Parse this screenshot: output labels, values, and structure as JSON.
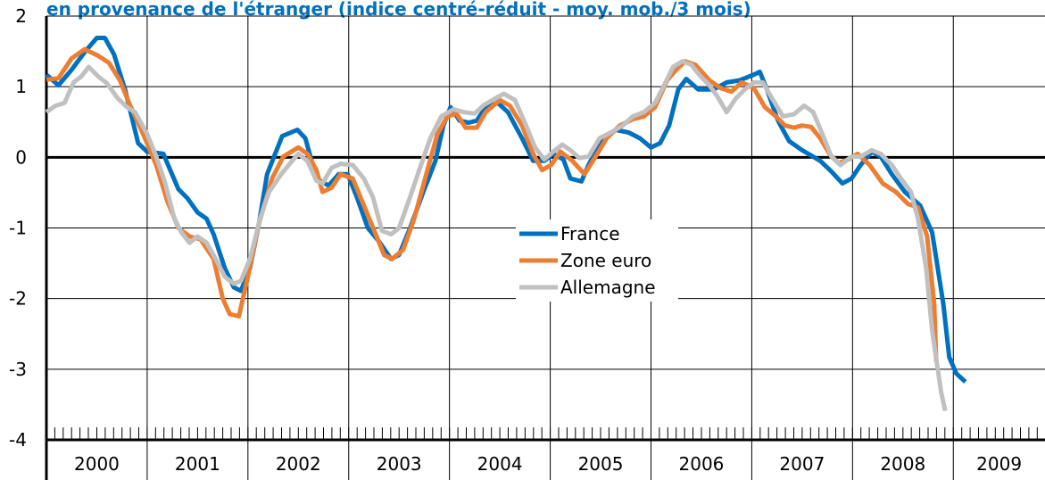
{
  "chart_data": {
    "type": "line",
    "title": "en provenance de l'étranger (indice centré-réduit - moy. mob./3 mois)",
    "xlim": [
      2000,
      2009.91
    ],
    "xticks": [
      2000,
      2001,
      2002,
      2003,
      2004,
      2005,
      2006,
      2007,
      2008,
      2009
    ],
    "ylim": [
      -4,
      2
    ],
    "yticks": [
      -4,
      -3,
      -2,
      -1,
      0,
      1,
      2
    ],
    "grid": true,
    "series": [
      {
        "name": "France",
        "color": "#0070c0",
        "x": [
          2000.0,
          2000.12,
          2000.25,
          2000.38,
          2000.5,
          2000.58,
          2000.67,
          2000.78,
          2000.91,
          2001.0,
          2001.16,
          2001.31,
          2001.4,
          2001.5,
          2001.59,
          2001.66,
          2001.77,
          2001.86,
          2001.93,
          2002.02,
          2002.11,
          2002.19,
          2002.34,
          2002.49,
          2002.57,
          2002.68,
          2002.8,
          2002.9,
          2002.99,
          2003.08,
          2003.19,
          2003.3,
          2003.42,
          2003.5,
          2003.61,
          2003.74,
          2003.86,
          2003.94,
          2004.01,
          2004.1,
          2004.19,
          2004.27,
          2004.36,
          2004.48,
          2004.58,
          2004.72,
          2004.83,
          2004.94,
          2005.03,
          2005.13,
          2005.2,
          2005.31,
          2005.38,
          2005.49,
          2005.65,
          2005.78,
          2005.89,
          2006.0,
          2006.09,
          2006.18,
          2006.27,
          2006.35,
          2006.47,
          2006.62,
          2006.75,
          2006.88,
          2007.02,
          2007.08,
          2007.15,
          2007.26,
          2007.37,
          2007.5,
          2007.68,
          2007.79,
          2007.9,
          2007.99,
          2008.08,
          2008.19,
          2008.28,
          2008.39,
          2008.52,
          2008.67,
          2008.79,
          2008.9,
          2008.96,
          2009.03,
          2009.12
        ],
        "values": [
          1.17,
          1.02,
          1.24,
          1.49,
          1.69,
          1.69,
          1.46,
          0.96,
          0.2,
          0.08,
          0.05,
          -0.45,
          -0.58,
          -0.78,
          -0.87,
          -1.09,
          -1.57,
          -1.84,
          -1.89,
          -1.57,
          -0.93,
          -0.24,
          0.3,
          0.39,
          0.27,
          -0.3,
          -0.4,
          -0.24,
          -0.24,
          -0.56,
          -1.0,
          -1.19,
          -1.44,
          -1.38,
          -1.0,
          -0.49,
          -0.05,
          0.45,
          0.71,
          0.52,
          0.49,
          0.52,
          0.71,
          0.77,
          0.64,
          0.27,
          -0.05,
          -0.05,
          0.05,
          -0.03,
          -0.3,
          -0.34,
          -0.11,
          0.2,
          0.39,
          0.35,
          0.27,
          0.14,
          0.2,
          0.45,
          0.96,
          1.11,
          0.96,
          0.96,
          1.06,
          1.09,
          1.17,
          1.21,
          0.96,
          0.52,
          0.23,
          0.1,
          -0.05,
          -0.2,
          -0.37,
          -0.3,
          -0.11,
          0.08,
          0.01,
          -0.24,
          -0.49,
          -0.68,
          -1.06,
          -2.07,
          -2.83,
          -3.06,
          -3.18
        ]
      },
      {
        "name": "Zone euro",
        "color": "#ed7d31",
        "x": [
          2000.0,
          2000.12,
          2000.25,
          2000.38,
          2000.51,
          2000.62,
          2000.73,
          2000.82,
          2000.96,
          2001.09,
          2001.2,
          2001.31,
          2001.42,
          2001.53,
          2001.66,
          2001.75,
          2001.82,
          2001.91,
          2002.0,
          2002.11,
          2002.24,
          2002.35,
          2002.5,
          2002.59,
          2002.68,
          2002.74,
          2002.83,
          2002.92,
          2003.04,
          2003.15,
          2003.26,
          2003.35,
          2003.43,
          2003.54,
          2003.65,
          2003.77,
          2003.88,
          2003.98,
          2004.07,
          2004.16,
          2004.27,
          2004.36,
          2004.5,
          2004.6,
          2004.72,
          2004.83,
          2004.92,
          2005.01,
          2005.1,
          2005.22,
          2005.34,
          2005.45,
          2005.56,
          2005.69,
          2005.82,
          2005.93,
          2006.04,
          2006.16,
          2006.25,
          2006.34,
          2006.44,
          2006.58,
          2006.69,
          2006.8,
          2006.9,
          2007.02,
          2007.13,
          2007.24,
          2007.33,
          2007.42,
          2007.5,
          2007.59,
          2007.68,
          2007.77,
          2007.86,
          2007.96,
          2008.05,
          2008.17,
          2008.3,
          2008.43,
          2008.55,
          2008.65,
          2008.74,
          2008.81,
          2008.83
        ],
        "values": [
          1.1,
          1.12,
          1.4,
          1.53,
          1.44,
          1.34,
          1.09,
          0.77,
          0.33,
          -0.11,
          -0.62,
          -1.0,
          -1.12,
          -1.16,
          -1.44,
          -2.0,
          -2.22,
          -2.25,
          -1.69,
          -0.93,
          -0.3,
          0.01,
          0.14,
          0.05,
          -0.18,
          -0.49,
          -0.43,
          -0.24,
          -0.3,
          -0.68,
          -1.06,
          -1.38,
          -1.44,
          -1.31,
          -0.87,
          -0.24,
          0.33,
          0.58,
          0.62,
          0.42,
          0.42,
          0.64,
          0.81,
          0.73,
          0.45,
          0.05,
          -0.18,
          -0.11,
          0.08,
          -0.05,
          -0.24,
          0.01,
          0.27,
          0.45,
          0.54,
          0.58,
          0.71,
          1.09,
          1.24,
          1.36,
          1.31,
          1.09,
          0.98,
          0.93,
          1.06,
          0.98,
          0.71,
          0.58,
          0.45,
          0.42,
          0.45,
          0.43,
          0.27,
          0.05,
          -0.08,
          -0.03,
          0.05,
          -0.11,
          -0.37,
          -0.49,
          -0.66,
          -0.71,
          -1.12,
          -2.07,
          -2.89
        ]
      },
      {
        "name": "Allemagne",
        "color": "#c0c0c0",
        "x": [
          2000.0,
          2000.09,
          2000.18,
          2000.27,
          2000.35,
          2000.42,
          2000.51,
          2000.6,
          2000.71,
          2000.8,
          2000.88,
          2001.0,
          2001.09,
          2001.18,
          2001.27,
          2001.34,
          2001.42,
          2001.5,
          2001.59,
          2001.68,
          2001.77,
          2001.86,
          2001.93,
          2002.02,
          2002.12,
          2002.21,
          2002.33,
          2002.42,
          2002.5,
          2002.59,
          2002.68,
          2002.74,
          2002.83,
          2002.92,
          2003.04,
          2003.15,
          2003.24,
          2003.33,
          2003.42,
          2003.5,
          2003.61,
          2003.7,
          2003.81,
          2003.92,
          2004.04,
          2004.14,
          2004.25,
          2004.34,
          2004.45,
          2004.54,
          2004.65,
          2004.74,
          2004.85,
          2004.94,
          2005.03,
          2005.12,
          2005.2,
          2005.29,
          2005.38,
          2005.49,
          2005.6,
          2005.72,
          2005.82,
          2005.93,
          2006.04,
          2006.13,
          2006.22,
          2006.31,
          2006.4,
          2006.49,
          2006.58,
          2006.66,
          2006.75,
          2006.84,
          2006.93,
          2007.02,
          2007.11,
          2007.19,
          2007.31,
          2007.42,
          2007.52,
          2007.61,
          2007.7,
          2007.79,
          2007.88,
          2007.99,
          2008.08,
          2008.19,
          2008.28,
          2008.39,
          2008.48,
          2008.58,
          2008.65,
          2008.73,
          2008.79,
          2008.88,
          2008.92
        ],
        "values": [
          0.64,
          0.73,
          0.77,
          1.06,
          1.15,
          1.28,
          1.15,
          1.05,
          0.83,
          0.71,
          0.64,
          0.33,
          0.01,
          -0.37,
          -0.87,
          -1.06,
          -1.21,
          -1.12,
          -1.21,
          -1.44,
          -1.69,
          -1.79,
          -1.75,
          -1.44,
          -0.87,
          -0.49,
          -0.24,
          -0.08,
          0.05,
          -0.05,
          -0.33,
          -0.37,
          -0.15,
          -0.09,
          -0.11,
          -0.3,
          -0.56,
          -1.04,
          -1.09,
          -1.0,
          -0.56,
          -0.18,
          0.27,
          0.58,
          0.68,
          0.64,
          0.62,
          0.74,
          0.83,
          0.9,
          0.81,
          0.52,
          0.14,
          -0.03,
          0.08,
          0.18,
          0.1,
          -0.01,
          0.01,
          0.27,
          0.35,
          0.45,
          0.58,
          0.64,
          0.77,
          1.02,
          1.28,
          1.36,
          1.31,
          1.15,
          1.02,
          0.86,
          0.64,
          0.83,
          0.96,
          1.06,
          1.06,
          0.86,
          0.58,
          0.61,
          0.73,
          0.64,
          0.33,
          0.01,
          -0.11,
          0.01,
          0.01,
          0.1,
          0.05,
          -0.11,
          -0.3,
          -0.49,
          -0.87,
          -1.57,
          -2.45,
          -3.33,
          -3.59
        ]
      }
    ]
  }
}
